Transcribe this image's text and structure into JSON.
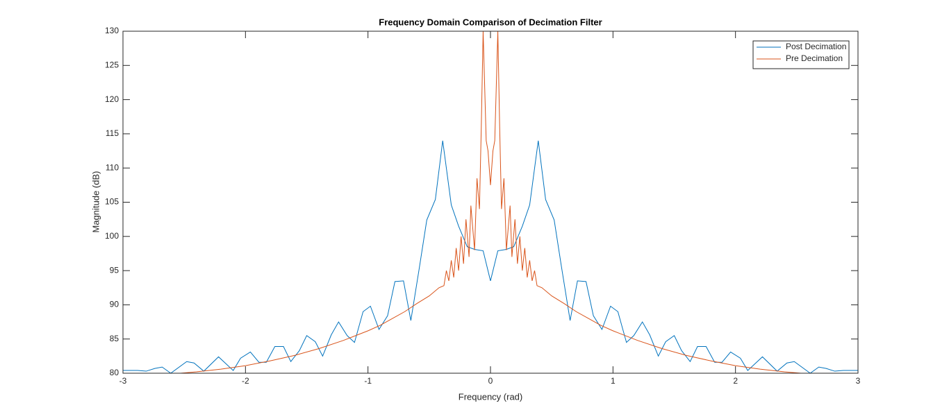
{
  "chart_data": {
    "type": "line",
    "title": "Frequency Domain Comparison of Decimation Filter",
    "xlabel": "Frequency (rad)",
    "ylabel": "Magnitude (dB)",
    "xlim": [
      -3,
      3
    ],
    "ylim": [
      80,
      130
    ],
    "xticks": [
      -3,
      -2,
      -1,
      0,
      1,
      2,
      3
    ],
    "yticks": [
      80,
      85,
      90,
      95,
      100,
      105,
      110,
      115,
      120,
      125,
      130
    ],
    "legend": "northeast",
    "series": [
      {
        "name": "Post Decimation",
        "color": "#0072bd",
        "x": [
          -3,
          -2.88,
          -2.81,
          -2.74,
          -2.68,
          -2.61,
          -2.48,
          -2.42,
          -2.34,
          -2.22,
          -2.1,
          -2.04,
          -1.96,
          -1.89,
          -1.83,
          -1.76,
          -1.69,
          -1.63,
          -1.56,
          -1.5,
          -1.43,
          -1.37,
          -1.3,
          -1.24,
          -1.17,
          -1.11,
          -1.04,
          -0.98,
          -0.91,
          -0.84,
          -0.78,
          -0.71,
          -0.65,
          -0.58,
          -0.52,
          -0.45,
          -0.39,
          -0.32,
          -0.26,
          -0.19,
          -0.13,
          -0.06,
          0,
          0.06,
          0.13,
          0.19,
          0.26,
          0.32,
          0.39,
          0.45,
          0.52,
          0.58,
          0.65,
          0.71,
          0.78,
          0.84,
          0.91,
          0.98,
          1.04,
          1.11,
          1.17,
          1.24,
          1.3,
          1.37,
          1.43,
          1.5,
          1.56,
          1.63,
          1.69,
          1.76,
          1.83,
          1.89,
          1.96,
          2.04,
          2.1,
          2.22,
          2.34,
          2.42,
          2.48,
          2.61,
          2.68,
          2.74,
          2.81,
          2.88,
          3
        ],
        "values": [
          80.4,
          80.4,
          80.3,
          80.7,
          80.9,
          80.0,
          81.7,
          81.5,
          80.3,
          82.4,
          80.4,
          82.2,
          83.1,
          81.6,
          81.6,
          83.9,
          83.9,
          81.7,
          83.3,
          85.5,
          84.6,
          82.5,
          85.6,
          87.5,
          85.5,
          84.5,
          89.0,
          89.8,
          86.4,
          88.4,
          93.4,
          93.5,
          87.7,
          95.5,
          102.4,
          105.4,
          114.0,
          104.6,
          101.5,
          98.5,
          98.1,
          97.9,
          93.5,
          97.9,
          98.1,
          98.5,
          101.5,
          104.6,
          114.0,
          105.4,
          102.4,
          95.5,
          87.7,
          93.5,
          93.4,
          88.4,
          86.4,
          89.8,
          89.0,
          84.5,
          85.5,
          87.5,
          85.6,
          82.5,
          84.6,
          85.5,
          83.3,
          81.7,
          83.9,
          83.9,
          81.6,
          81.6,
          83.1,
          82.2,
          80.4,
          82.4,
          80.3,
          81.5,
          81.7,
          80.0,
          80.9,
          80.7,
          80.3,
          80.4,
          80.4
        ]
      },
      {
        "name": "Pre Decimation",
        "color": "#d95319",
        "x": [
          -2.6,
          -2.4,
          -2.2,
          -2.0,
          -1.8,
          -1.6,
          -1.4,
          -1.2,
          -1.0,
          -0.9,
          -0.8,
          -0.7,
          -0.6,
          -0.5,
          -0.42,
          -0.38,
          -0.36,
          -0.34,
          -0.32,
          -0.3,
          -0.28,
          -0.26,
          -0.24,
          -0.22,
          -0.2,
          -0.175,
          -0.16,
          -0.13,
          -0.11,
          -0.09,
          -0.075,
          -0.06,
          -0.035,
          -0.02,
          0,
          0.02,
          0.035,
          0.06,
          0.075,
          0.09,
          0.11,
          0.13,
          0.16,
          0.175,
          0.2,
          0.22,
          0.24,
          0.26,
          0.28,
          0.3,
          0.32,
          0.34,
          0.36,
          0.38,
          0.42,
          0.5,
          0.6,
          0.7,
          0.8,
          0.9,
          1.0,
          1.2,
          1.4,
          1.6,
          1.8,
          2.0,
          2.2,
          2.4,
          2.6
        ],
        "values": [
          79.9,
          80.2,
          80.6,
          81.1,
          81.8,
          82.6,
          83.6,
          84.8,
          86.2,
          87.0,
          88.0,
          89.0,
          90.2,
          91.3,
          92.5,
          92.8,
          95.0,
          93.5,
          96.5,
          94.0,
          98.3,
          95.0,
          100.0,
          96.0,
          102.5,
          97.0,
          104.5,
          98.0,
          108.5,
          104.0,
          116.0,
          130.0,
          114.0,
          112.5,
          107.5,
          112.5,
          114.0,
          130.0,
          116.0,
          104.0,
          108.5,
          98.0,
          104.5,
          97.0,
          102.5,
          96.0,
          100.0,
          95.0,
          98.3,
          94.0,
          96.5,
          93.5,
          95.0,
          92.8,
          92.5,
          91.3,
          90.2,
          89.0,
          88.0,
          87.0,
          86.2,
          84.8,
          83.6,
          82.6,
          81.8,
          81.1,
          80.6,
          80.2,
          79.9
        ]
      }
    ]
  }
}
